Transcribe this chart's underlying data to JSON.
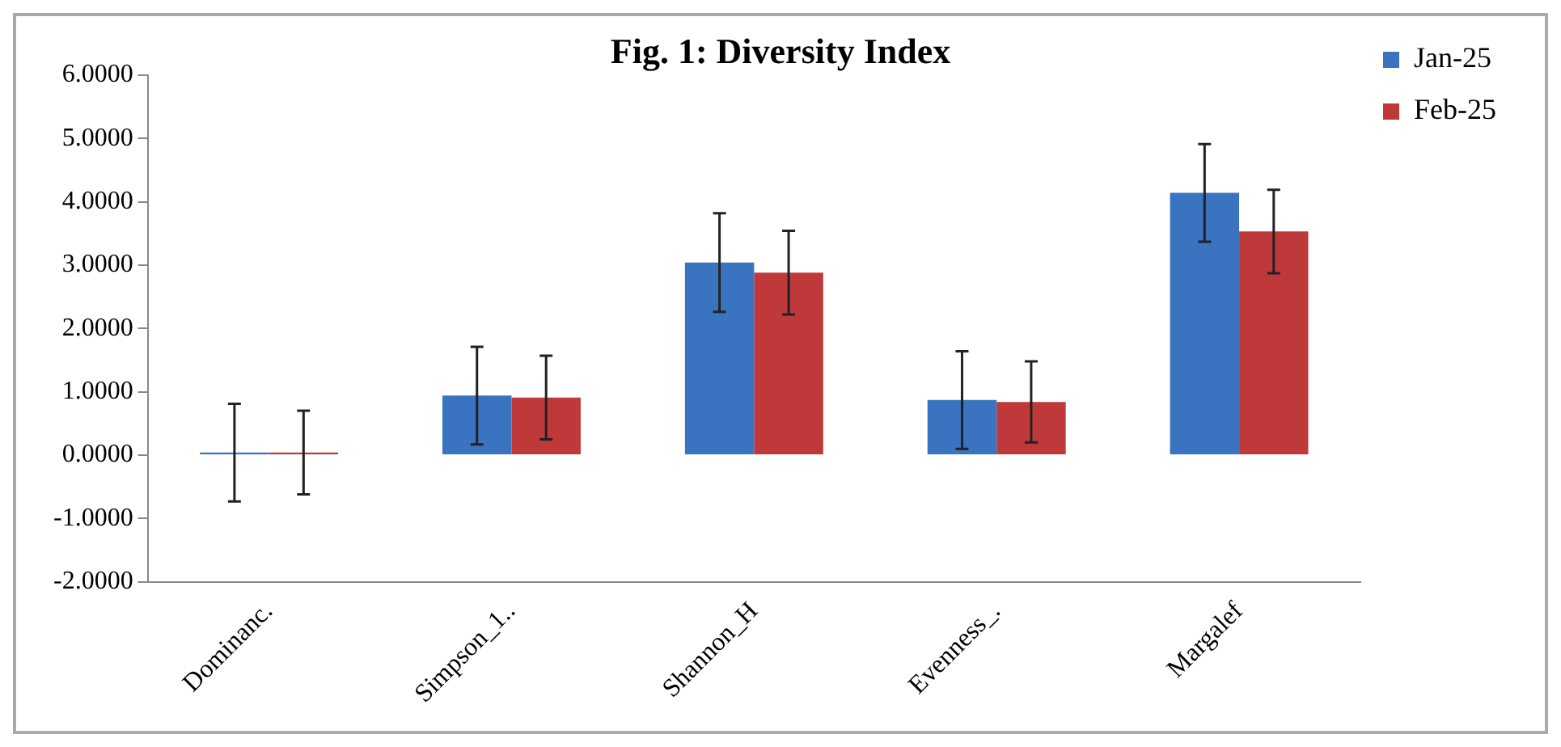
{
  "chart_data": {
    "type": "bar",
    "title": "Fig. 1: Diversity Index",
    "categories": [
      "Dominanc.",
      "Simpson_1..",
      "Shannon_H",
      "Evenness_.",
      "Margalef"
    ],
    "series": [
      {
        "name": "Jan-25",
        "color": "#3a74c0",
        "values": [
          0.04,
          0.94,
          3.04,
          0.87,
          4.14
        ],
        "errors": [
          0.77,
          0.77,
          0.78,
          0.77,
          0.77
        ]
      },
      {
        "name": "Feb-25",
        "color": "#c0393a",
        "values": [
          0.04,
          0.91,
          2.88,
          0.84,
          3.53
        ],
        "errors": [
          0.66,
          0.66,
          0.66,
          0.64,
          0.66
        ]
      }
    ],
    "ylim": [
      -2,
      6
    ],
    "yticks": [
      {
        "value": -2,
        "label": "-2.0000"
      },
      {
        "value": -1,
        "label": "-1.0000"
      },
      {
        "value": 0,
        "label": "0.0000"
      },
      {
        "value": 1,
        "label": "1.0000"
      },
      {
        "value": 2,
        "label": "2.0000"
      },
      {
        "value": 3,
        "label": "3.0000"
      },
      {
        "value": 4,
        "label": "4.0000"
      },
      {
        "value": 5,
        "label": "5.0000"
      },
      {
        "value": 6,
        "label": "6.0000"
      }
    ],
    "grid": false,
    "legend": "top right"
  }
}
